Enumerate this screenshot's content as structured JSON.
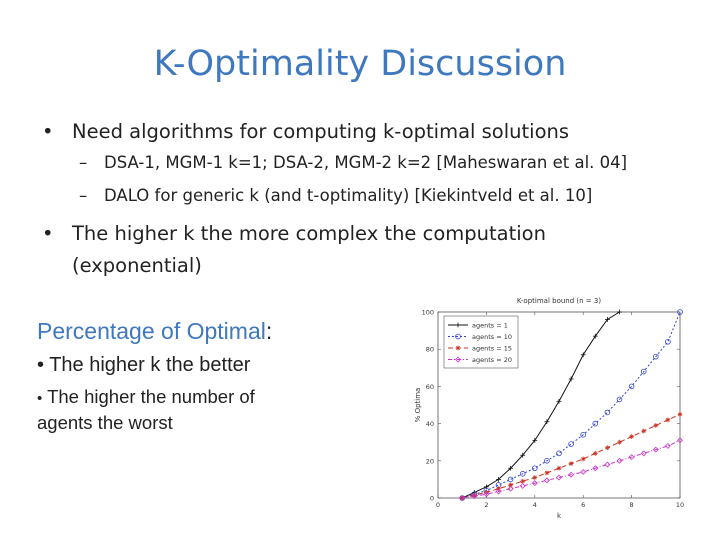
{
  "slide": {
    "title": "K-Optimality Discussion",
    "bullet_glyph": "•",
    "dash_glyph": "–",
    "bullets": [
      {
        "text": "Need algorithms for computing k-optimal solutions",
        "subbullets": [
          "DSA-1, MGM-1 k=1; DSA-2, MGM-2 k=2 [Maheswaran et al. 04]",
          "DALO for generic k (and t-optimality) [Kiekintveld et al. 10]"
        ]
      },
      {
        "text_line1": "The higher k the more complex the computation",
        "text_line2": "(exponential)"
      }
    ],
    "left_panel": {
      "heading": "Percentage of Optimal",
      "heading_colon": ":",
      "point1": "The higher k the better",
      "point2_line1": "The higher the number of",
      "point2_line2": "agents the worst"
    }
  },
  "chart_data": {
    "type": "line",
    "title": "K-optimal bound (n = 3)",
    "xlabel": "k",
    "ylabel": "% Optima",
    "xlim": [
      0,
      10
    ],
    "ylim": [
      0,
      100
    ],
    "xticks": [
      "0",
      "2",
      "4",
      "6",
      "8",
      "10"
    ],
    "yticks": [
      "0",
      "20",
      "40",
      "60",
      "80",
      "100"
    ],
    "legend_position": "top-left",
    "series": [
      {
        "name": "agents = 1",
        "color": "#111111",
        "marker": "+",
        "dash": "none",
        "x": [
          1,
          1.5,
          2,
          2.5,
          3,
          3.5,
          4,
          4.5,
          5,
          5.5,
          6,
          6.5,
          7,
          7.5
        ],
        "y": [
          0,
          3,
          6,
          10,
          16,
          23,
          31,
          41,
          52,
          64,
          77,
          87,
          96,
          100
        ]
      },
      {
        "name": "agents = 10",
        "color": "#3344cc",
        "marker": "o",
        "dash": "2,2",
        "x": [
          1,
          1.5,
          2,
          2.5,
          3,
          3.5,
          4,
          4.5,
          5,
          5.5,
          6,
          6.5,
          7,
          7.5,
          8,
          8.5,
          9,
          9.5,
          10
        ],
        "y": [
          0,
          2,
          4,
          7,
          10,
          13,
          16,
          20,
          24,
          29,
          34,
          40,
          46,
          53,
          60,
          68,
          76,
          84,
          100
        ]
      },
      {
        "name": "agents = 15",
        "color": "#cc3322",
        "marker": "*",
        "dash": "5,3",
        "x": [
          1,
          1.5,
          2,
          2.5,
          3,
          3.5,
          4,
          4.5,
          5,
          5.5,
          6,
          6.5,
          7,
          7.5,
          8,
          8.5,
          9,
          9.5,
          10
        ],
        "y": [
          0,
          1.5,
          3,
          5,
          7,
          9,
          11,
          13.5,
          16,
          18.5,
          21,
          24,
          27,
          30,
          33,
          36,
          39,
          42,
          45
        ]
      },
      {
        "name": "agents = 20",
        "color": "#cc33cc",
        "marker": "d",
        "dash": "4,2,1,2",
        "x": [
          1,
          1.5,
          2,
          2.5,
          3,
          3.5,
          4,
          4.5,
          5,
          5.5,
          6,
          6.5,
          7,
          7.5,
          8,
          8.5,
          9,
          9.5,
          10
        ],
        "y": [
          0,
          1,
          2,
          3.5,
          5,
          6.5,
          8,
          9.5,
          11,
          12.5,
          14,
          16,
          18,
          20,
          22,
          24,
          26,
          28,
          31
        ]
      }
    ]
  }
}
